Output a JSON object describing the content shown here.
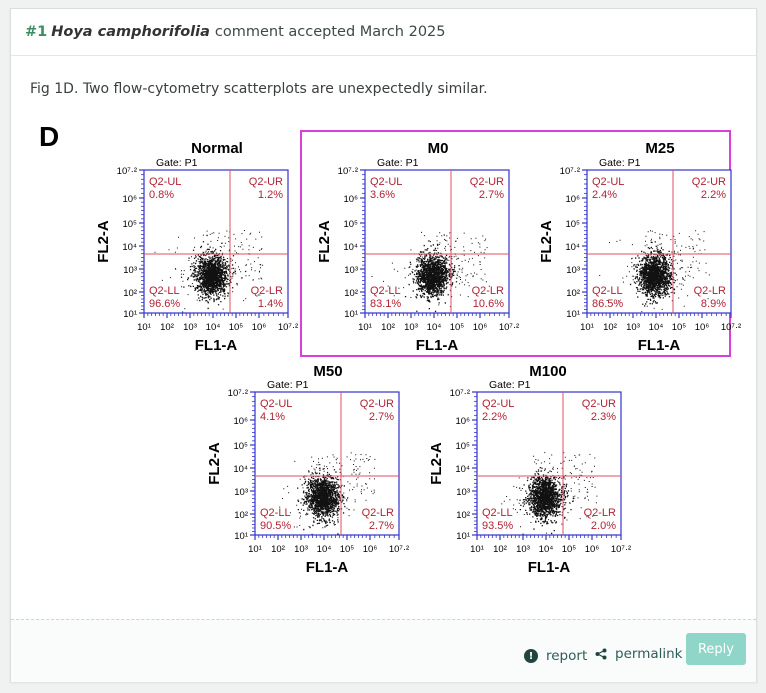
{
  "comment": {
    "number": "#1",
    "species": "Hoya camphorifolia",
    "status_text": "comment accepted March 2025",
    "description": "Fig 1D. Two flow-cytometry scatterplots are unexpectedly similar."
  },
  "figure": {
    "panel_letter": "D",
    "panels": [
      {
        "title": "Normal",
        "gate": "Gate: P1",
        "ul": "0.8%",
        "ur": "1.2%",
        "ll": "96.6%",
        "lr": "1.4%"
      },
      {
        "title": "M0",
        "gate": "Gate: P1",
        "ul": "3.6%",
        "ur": "2.7%",
        "ll": "83.1%",
        "lr": "10.6%"
      },
      {
        "title": "M25",
        "gate": "Gate: P1",
        "ul": "2.4%",
        "ur": "2.2%",
        "ll": "86.5%",
        "lr": "8.9%"
      },
      {
        "title": "M50",
        "gate": "Gate: P1",
        "ul": "4.1%",
        "ur": "2.7%",
        "ll": "90.5%",
        "lr": "2.7%"
      },
      {
        "title": "M100",
        "gate": "Gate: P1",
        "ul": "2.2%",
        "ur": "2.3%",
        "ll": "93.5%",
        "lr": "2.0%"
      }
    ],
    "quadrant_labels": {
      "ul": "Q2-UL",
      "ur": "Q2-UR",
      "ll": "Q2-LL",
      "lr": "Q2-LR"
    },
    "x_axis_label": "FL1-A",
    "y_axis_label": "FL2-A",
    "tick_labels": [
      "10¹",
      "10²",
      "10³",
      "10⁴",
      "10⁵",
      "10⁶",
      "10⁷·²"
    ],
    "colors": {
      "axis": "#3333cc",
      "quadrant_line": "#e05060",
      "quadrant_text": "#b22234",
      "highlight_box": "#d940d9"
    }
  },
  "footer": {
    "report_label": "report",
    "permalink_label": "permalink",
    "reply_label": "Reply",
    "report_icon": "exclamation-circle-icon",
    "permalink_icon": "share-icon"
  }
}
